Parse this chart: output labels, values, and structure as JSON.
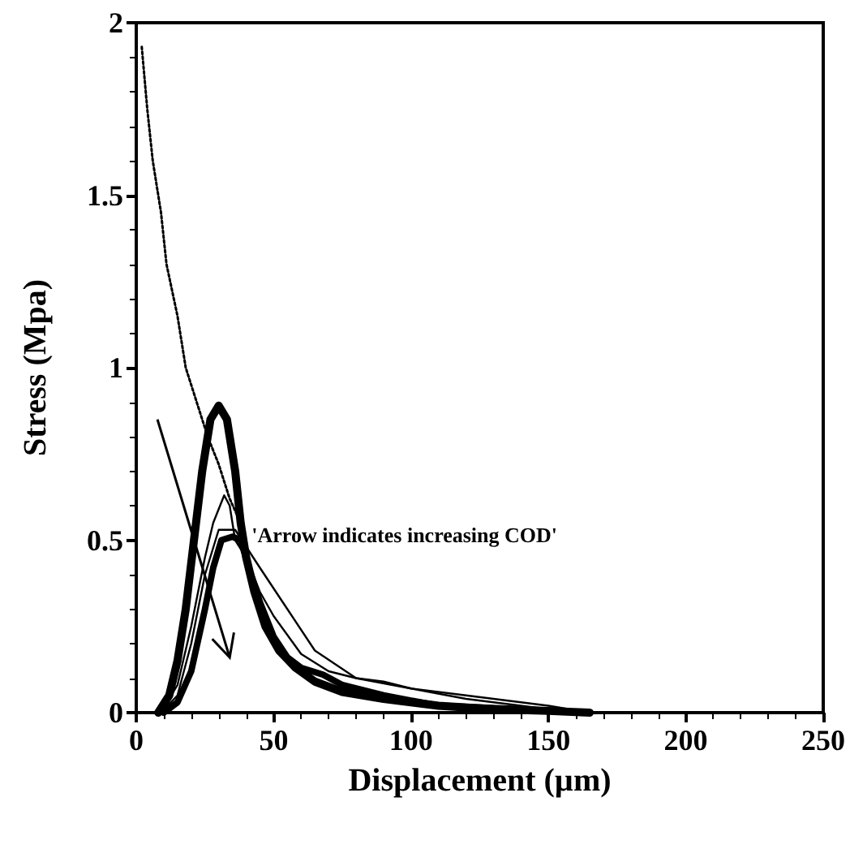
{
  "chart_data": {
    "type": "line",
    "xlabel": "Displacement (µm)",
    "ylabel": "Stress (Mpa)",
    "xlim": [
      0,
      250
    ],
    "xticks": [
      0,
      50,
      100,
      150,
      200,
      250
    ],
    "ylim": [
      0,
      2
    ],
    "yticks": [
      0,
      0.5,
      1,
      1.5,
      2
    ],
    "grid": false,
    "marker": "none",
    "annotations": [
      "'Arrow indicates increasing COD'"
    ],
    "series": [
      {
        "color": "#000000",
        "line_style": "solid",
        "x": [
          8,
          12,
          15,
          18,
          21,
          24,
          27,
          30,
          33,
          36,
          38,
          40,
          43,
          47,
          52,
          58,
          65,
          75,
          90,
          110,
          130,
          150,
          165
        ],
        "values": [
          0,
          0.05,
          0.15,
          0.3,
          0.5,
          0.7,
          0.85,
          0.89,
          0.85,
          0.7,
          0.55,
          0.45,
          0.35,
          0.25,
          0.18,
          0.13,
          0.09,
          0.06,
          0.04,
          0.02,
          0.01,
          0.005,
          0
        ]
      },
      {
        "color": "#000000",
        "line_style": "solid",
        "x": [
          10,
          15,
          20,
          25,
          28,
          31,
          35,
          38,
          41,
          45,
          50,
          55,
          60,
          68,
          75,
          90,
          110,
          140,
          165
        ],
        "values": [
          0,
          0.03,
          0.12,
          0.3,
          0.42,
          0.5,
          0.51,
          0.5,
          0.42,
          0.32,
          0.22,
          0.16,
          0.13,
          0.11,
          0.08,
          0.05,
          0.02,
          0.01,
          0
        ]
      },
      {
        "color": "#000000",
        "line_style": "solid",
        "x": [
          9,
          15,
          20,
          25,
          28,
          32,
          34,
          36,
          40,
          45,
          50,
          60,
          70,
          80,
          90,
          100,
          120,
          150,
          165
        ],
        "values": [
          0,
          0.08,
          0.25,
          0.45,
          0.55,
          0.63,
          0.6,
          0.5,
          0.45,
          0.35,
          0.28,
          0.17,
          0.12,
          0.1,
          0.09,
          0.07,
          0.05,
          0.02,
          0
        ]
      },
      {
        "color": "#000000",
        "line_style": "solid",
        "x": [
          9,
          15,
          20,
          25,
          30,
          36,
          45,
          55,
          65,
          80,
          100,
          120,
          150,
          165
        ],
        "values": [
          0,
          0.05,
          0.2,
          0.4,
          0.53,
          0.53,
          0.42,
          0.3,
          0.18,
          0.1,
          0.07,
          0.04,
          0.01,
          0
        ]
      },
      {
        "color": "#000000",
        "line_style": "dotted",
        "x": [
          2,
          4,
          6,
          9,
          11,
          15,
          18,
          22,
          26,
          30,
          34,
          38
        ],
        "values": [
          1.93,
          1.75,
          1.6,
          1.45,
          1.3,
          1.15,
          1,
          0.9,
          0.8,
          0.72,
          0.62,
          0.55
        ]
      }
    ]
  }
}
